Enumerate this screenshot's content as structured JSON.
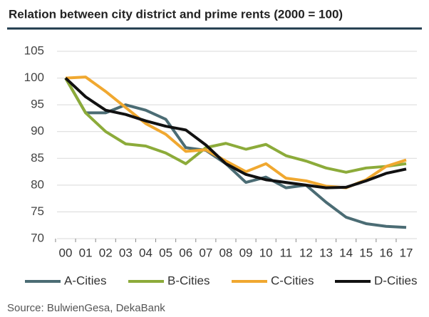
{
  "chart_data": {
    "type": "line",
    "title": "Relation between city district and prime rents (2000 = 100)",
    "source": "Source: BulwienGesa, DekaBank",
    "categories": [
      "00",
      "01",
      "02",
      "03",
      "04",
      "05",
      "06",
      "07",
      "08",
      "09",
      "10",
      "11",
      "12",
      "13",
      "14",
      "15",
      "16",
      "17"
    ],
    "series": [
      {
        "name": "A-Cities",
        "color": "#4b6c74",
        "values": [
          100,
          93.5,
          93.5,
          95,
          94,
          92.3,
          87,
          86.5,
          84,
          80.5,
          81.5,
          79.5,
          80,
          76.8,
          74,
          72.8,
          72.3,
          72.1
        ]
      },
      {
        "name": "B-Cities",
        "color": "#8cab3a",
        "values": [
          100,
          93.5,
          90,
          87.7,
          87.3,
          86,
          84,
          87,
          87.8,
          86.7,
          87.6,
          85.5,
          84.5,
          83.2,
          82.4,
          83.2,
          83.5,
          84
        ]
      },
      {
        "name": "C-Cities",
        "color": "#f0a830",
        "values": [
          100,
          100.2,
          97.5,
          94.5,
          91.5,
          89.5,
          86.3,
          86.6,
          84.5,
          82.5,
          84,
          81.3,
          80.8,
          79.8,
          79.5,
          81,
          83.5,
          84.7
        ]
      },
      {
        "name": "D-Cities",
        "color": "#111111",
        "values": [
          100,
          96.5,
          94,
          93.2,
          92,
          91,
          90.3,
          87.5,
          84,
          82,
          81,
          80.5,
          80,
          79.5,
          79.6,
          80.8,
          82.2,
          83
        ]
      }
    ],
    "ylim": [
      70,
      105
    ],
    "yticks": [
      70,
      75,
      80,
      85,
      90,
      95,
      100,
      105
    ],
    "grid": true
  }
}
